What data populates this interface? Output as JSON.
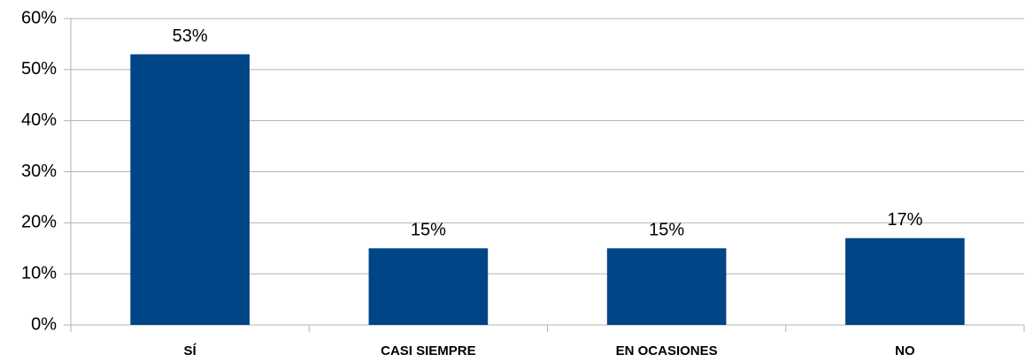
{
  "chart_data": {
    "type": "bar",
    "categories": [
      "SÍ",
      "CASI SIEMPRE",
      "EN OCASIONES",
      "NO"
    ],
    "values": [
      53,
      15,
      15,
      17
    ],
    "value_labels": [
      "53%",
      "15%",
      "15%",
      "17%"
    ],
    "color": "#004586",
    "ylim": [
      0,
      60
    ],
    "yticks": [
      {
        "value": 0,
        "label": "0%"
      },
      {
        "value": 10,
        "label": "10%"
      },
      {
        "value": 20,
        "label": "20%"
      },
      {
        "value": 30,
        "label": "30%"
      },
      {
        "value": 40,
        "label": "40%"
      },
      {
        "value": 50,
        "label": "50%"
      },
      {
        "value": 60,
        "label": "60%"
      }
    ],
    "grid": true
  }
}
